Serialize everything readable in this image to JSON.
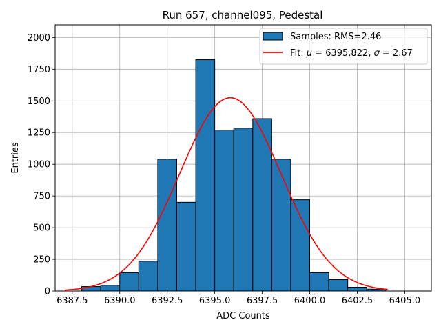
{
  "chart_data": {
    "type": "bar",
    "title": "Run 657, channel095, Pedestal",
    "xlabel": "ADC Counts",
    "ylabel": "Entries",
    "xlim": [
      6386.6,
      6406.4
    ],
    "ylim": [
      0,
      2100
    ],
    "xticks": [
      6387.5,
      6390.0,
      6392.5,
      6395.0,
      6397.5,
      6400.0,
      6402.5,
      6405.0
    ],
    "xtick_labels": [
      "6387.5",
      "6390.0",
      "6392.5",
      "6395.0",
      "6397.5",
      "6400.0",
      "6402.5",
      "6405.0"
    ],
    "yticks": [
      0,
      250,
      500,
      750,
      1000,
      1250,
      1500,
      1750,
      2000
    ],
    "ytick_labels": [
      "0",
      "250",
      "500",
      "750",
      "1000",
      "1250",
      "1500",
      "1750",
      "2000"
    ],
    "grid": true,
    "legend_position": "top-right",
    "bins": [
      {
        "x0": 6388,
        "x1": 6389,
        "count": 35
      },
      {
        "x0": 6389,
        "x1": 6390,
        "count": 45
      },
      {
        "x0": 6390,
        "x1": 6391,
        "count": 145
      },
      {
        "x0": 6391,
        "x1": 6392,
        "count": 235
      },
      {
        "x0": 6392,
        "x1": 6393,
        "count": 1040
      },
      {
        "x0": 6393,
        "x1": 6394,
        "count": 700
      },
      {
        "x0": 6394,
        "x1": 6395,
        "count": 1825
      },
      {
        "x0": 6395,
        "x1": 6396,
        "count": 1270
      },
      {
        "x0": 6396,
        "x1": 6397,
        "count": 1285
      },
      {
        "x0": 6397,
        "x1": 6398,
        "count": 1360
      },
      {
        "x0": 6398,
        "x1": 6399,
        "count": 1040
      },
      {
        "x0": 6399,
        "x1": 6400,
        "count": 720
      },
      {
        "x0": 6400,
        "x1": 6401,
        "count": 145
      },
      {
        "x0": 6401,
        "x1": 6402,
        "count": 90
      },
      {
        "x0": 6402,
        "x1": 6403,
        "count": 30
      },
      {
        "x0": 6403,
        "x1": 6404,
        "count": 15
      }
    ],
    "histogram": {
      "name": "Samples: RMS=2.46",
      "color": "#1f77b4",
      "edge_color": "#000000"
    },
    "fit": {
      "name_prefix": "Fit: ",
      "mu_symbol": "μ",
      "mu_value": " = 6395.822, ",
      "sigma_symbol": "σ",
      "sigma_value": " = 2.67",
      "mu": 6395.822,
      "sigma": 2.67,
      "amplitude": 1525,
      "x_range": [
        6387.1,
        6404.1
      ],
      "color": "#ff0000"
    }
  }
}
